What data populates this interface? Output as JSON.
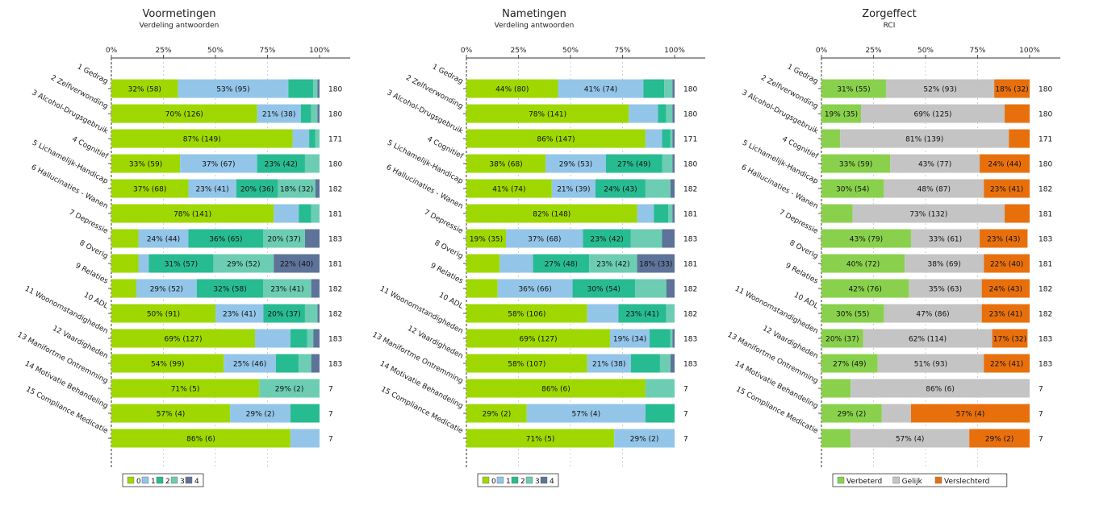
{
  "chart_data": [
    {
      "type": "bar",
      "orientation": "horizontal",
      "stacked": "percent",
      "title": "Voormetingen",
      "subtitle": "Verdeling antwoorden",
      "xlim": [
        0,
        100
      ],
      "x_ticks": [
        "0%",
        "25%",
        "50%",
        "75%",
        "100%"
      ],
      "categories": [
        "1 Gedrag",
        "2 Zelfverwonding",
        "3 Alcohol-Drugsgebruik",
        "4 Cognitief",
        "5 Lichamelijk-Handicap",
        "6 Hallucinaties - Wanen",
        "7 Depressie",
        "8 Overig",
        "9 Relaties",
        "10 ADL",
        "11 Woonomstandigheden",
        "12 Vaardigheden",
        "13 Manifortme Ontremming",
        "14 Motivatie Behandeling",
        "15 Compliance Medicatie"
      ],
      "totals": [
        180,
        180,
        171,
        180,
        182,
        181,
        183,
        181,
        182,
        182,
        183,
        183,
        7,
        7,
        7
      ],
      "legend": "bottom",
      "series": [
        {
          "name": "0",
          "color": "#9ed800",
          "values": [
            32,
            70,
            87,
            33,
            37,
            78,
            13,
            13,
            12,
            50,
            69,
            54,
            71,
            57,
            86
          ],
          "labels": [
            "32% (58)",
            "70% (126)",
            "87% (149)",
            "33% (59)",
            "37% (68)",
            "78% (141)",
            "",
            "",
            "",
            "50% (91)",
            "69% (127)",
            "54% (99)",
            "71% (5)",
            "57% (4)",
            "86% (6)"
          ]
        },
        {
          "name": "1",
          "color": "#93c5e9",
          "values": [
            53,
            21,
            8,
            37,
            23,
            12,
            24,
            5,
            29,
            23,
            17,
            25,
            0,
            29,
            14
          ],
          "labels": [
            "53% (95)",
            "21% (38)",
            "",
            "37% (67)",
            "23% (41)",
            "",
            "24% (44)",
            "",
            "29% (52)",
            "23% (41)",
            "",
            "25% (46)",
            "",
            "29% (2)",
            ""
          ]
        },
        {
          "name": "2",
          "color": "#27bb91",
          "values": [
            12,
            5,
            3,
            23,
            20,
            6,
            36,
            31,
            32,
            20,
            8,
            11,
            0,
            14,
            0
          ],
          "labels": [
            "",
            "",
            "",
            "23% (42)",
            "20% (36)",
            "",
            "36% (65)",
            "31% (57)",
            "32% (58)",
            "20% (37)",
            "",
            "",
            "",
            "",
            ""
          ]
        },
        {
          "name": "3",
          "color": "#6ccdb3",
          "values": [
            2,
            3,
            2,
            7,
            18,
            4,
            20,
            29,
            23,
            6,
            3,
            6,
            29,
            0,
            0
          ],
          "labels": [
            "",
            "",
            "",
            "",
            "18% (32)",
            "",
            "20% (37)",
            "29% (52)",
            "23% (41)",
            "",
            "",
            "",
            "29% (2)",
            "",
            ""
          ]
        },
        {
          "name": "4",
          "color": "#5d7399",
          "values": [
            1,
            1,
            0,
            0,
            2,
            0,
            7,
            22,
            4,
            1,
            3,
            4,
            0,
            0,
            0
          ],
          "labels": [
            "",
            "",
            "",
            "",
            "",
            "",
            "",
            "22% (40)",
            "",
            "",
            "",
            "",
            "",
            "",
            ""
          ]
        }
      ]
    },
    {
      "type": "bar",
      "orientation": "horizontal",
      "stacked": "percent",
      "title": "Nametingen",
      "subtitle": "Verdeling antwoorden",
      "xlim": [
        0,
        100
      ],
      "x_ticks": [
        "0%",
        "25%",
        "50%",
        "75%",
        "100%"
      ],
      "categories": [
        "1 Gedrag",
        "2 Zelfverwonding",
        "3 Alcohol-Drugsgebruik",
        "4 Cognitief",
        "5 Lichamelijk-Handicap",
        "6 Hallucinaties - Wanen",
        "7 Depressie",
        "8 Overig",
        "9 Relaties",
        "10 ADL",
        "11 Woonomstandigheden",
        "12 Vaardigheden",
        "13 Manifortme Ontremming",
        "14 Motivatie Behandeling",
        "15 Compliance Medicatie"
      ],
      "totals": [
        180,
        180,
        171,
        180,
        182,
        181,
        183,
        181,
        182,
        182,
        183,
        183,
        7,
        7,
        7
      ],
      "legend": "bottom",
      "series": [
        {
          "name": "0",
          "color": "#9ed800",
          "values": [
            44,
            78,
            86,
            38,
            41,
            82,
            19,
            16,
            15,
            58,
            69,
            58,
            86,
            29,
            71
          ],
          "labels": [
            "44% (80)",
            "78% (141)",
            "86% (147)",
            "38% (68)",
            "41% (74)",
            "82% (148)",
            "19% (35)",
            "",
            "",
            "58% (106)",
            "69% (127)",
            "58% (107)",
            "86% (6)",
            "29% (2)",
            "71% (5)"
          ]
        },
        {
          "name": "1",
          "color": "#93c5e9",
          "values": [
            41,
            14,
            8,
            29,
            21,
            8,
            37,
            16,
            36,
            15,
            19,
            21,
            0,
            57,
            29
          ],
          "labels": [
            "41% (74)",
            "",
            "",
            "29% (53)",
            "21% (39)",
            "",
            "37% (68)",
            "",
            "36% (66)",
            "",
            "19% (34)",
            "21% (38)",
            "",
            "57% (4)",
            "29% (2)"
          ]
        },
        {
          "name": "2",
          "color": "#27bb91",
          "values": [
            10,
            4,
            4,
            27,
            24,
            7,
            23,
            27,
            30,
            23,
            10,
            14,
            0,
            14,
            0
          ],
          "labels": [
            "",
            "",
            "",
            "27% (49)",
            "24% (43)",
            "",
            "23% (42)",
            "27% (48)",
            "30% (54)",
            "23% (41)",
            "",
            "",
            "",
            "",
            ""
          ]
        },
        {
          "name": "3",
          "color": "#6ccdb3",
          "values": [
            4,
            3,
            1,
            5,
            12,
            2,
            15,
            23,
            15,
            4,
            1,
            5,
            14,
            0,
            0
          ],
          "labels": [
            "",
            "",
            "",
            "",
            "",
            "",
            "",
            "23% (42)",
            "",
            "",
            "",
            "",
            "",
            "",
            ""
          ]
        },
        {
          "name": "4",
          "color": "#5d7399",
          "values": [
            1,
            1,
            1,
            1,
            2,
            1,
            6,
            18,
            4,
            0,
            1,
            2,
            0,
            0,
            0
          ],
          "labels": [
            "",
            "",
            "",
            "",
            "",
            "",
            "",
            "18% (33)",
            "",
            "",
            "",
            "",
            "",
            "",
            ""
          ]
        }
      ]
    },
    {
      "type": "bar",
      "orientation": "horizontal",
      "stacked": "percent",
      "title": "Zorgeffect",
      "subtitle": "RCI",
      "xlim": [
        0,
        100
      ],
      "x_ticks": [
        "0%",
        "25%",
        "50%",
        "75%",
        "100%"
      ],
      "categories": [
        "1 Gedrag",
        "2 Zelfverwonding",
        "3 Alcohol-Drugsgebruik",
        "4 Cognitief",
        "5 Lichamelijk-Handicap",
        "6 Hallucinaties - Wanen",
        "7 Depressie",
        "8 Overig",
        "9 Relaties",
        "10 ADL",
        "11 Woonomstandigheden",
        "12 Vaardigheden",
        "13 Manifortme Ontremming",
        "14 Motivatie Behandeling",
        "15 Compliance Medicatie"
      ],
      "totals": [
        180,
        180,
        171,
        180,
        182,
        181,
        183,
        181,
        182,
        182,
        183,
        183,
        7,
        7,
        7
      ],
      "legend": "bottom",
      "series": [
        {
          "name": "Verbeterd",
          "color": "#89d14c",
          "values": [
            31,
            19,
            9,
            33,
            30,
            15,
            43,
            40,
            42,
            30,
            20,
            27,
            14,
            29,
            14
          ],
          "labels": [
            "31% (55)",
            "19% (35)",
            "",
            "33% (59)",
            "30% (54)",
            "",
            "43% (79)",
            "40% (72)",
            "42% (76)",
            "30% (55)",
            "20% (37)",
            "27% (49)",
            "",
            "29% (2)",
            ""
          ]
        },
        {
          "name": "Gelijk",
          "color": "#c4c4c4",
          "values": [
            52,
            69,
            81,
            43,
            48,
            73,
            33,
            38,
            35,
            47,
            62,
            51,
            86,
            14,
            57
          ],
          "labels": [
            "52% (93)",
            "69% (125)",
            "81% (139)",
            "43% (77)",
            "48% (87)",
            "73% (132)",
            "33% (61)",
            "38% (69)",
            "35% (63)",
            "47% (86)",
            "62% (114)",
            "51% (93)",
            "86% (6)",
            "",
            "57% (4)"
          ]
        },
        {
          "name": "Verslechterd",
          "color": "#e8700c",
          "values": [
            18,
            12,
            10,
            24,
            23,
            12,
            23,
            22,
            24,
            23,
            17,
            22,
            0,
            57,
            29
          ],
          "labels": [
            "18% (32)",
            "",
            "",
            "24% (44)",
            "23% (41)",
            "",
            "23% (43)",
            "22% (40)",
            "24% (43)",
            "23% (41)",
            "17% (32)",
            "22% (41)",
            "",
            "57% (4)",
            "29% (2)"
          ]
        }
      ]
    }
  ]
}
